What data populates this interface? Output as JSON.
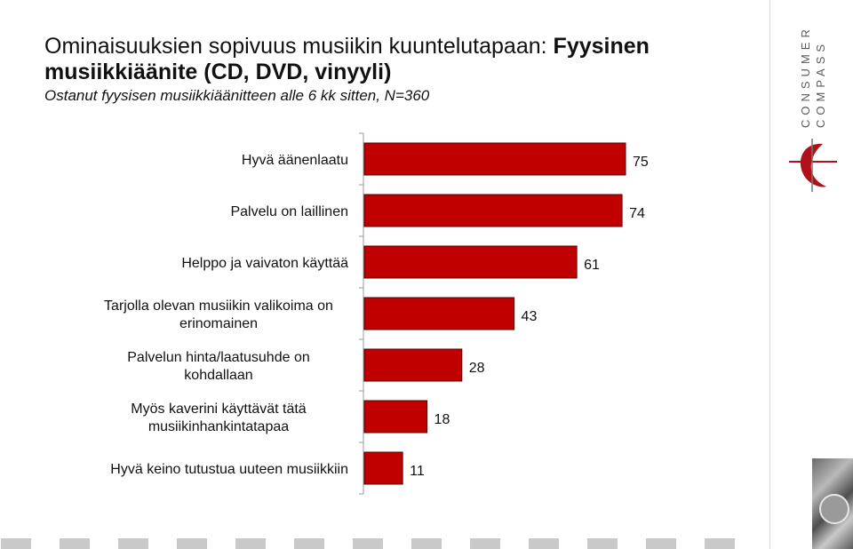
{
  "title": {
    "normal": "Ominaisuuksien sopivuus musiikin kuuntelutapaan: ",
    "bold": "Fyysinen musiikkiäänite (CD, DVD, vinyyli)"
  },
  "subtitle": "Ostanut fyysisen musiikkiäänitteen alle 6 kk sitten, N=360",
  "logo": {
    "line1": "CONSUMER",
    "line2": "COMPASS",
    "color": "#b0101a"
  },
  "colors": {
    "bar": "#c00000",
    "bar_edge": "#5a0000"
  },
  "chart_data": {
    "type": "bar",
    "orientation": "horizontal",
    "categories": [
      [
        "Hyvä äänenlaatu"
      ],
      [
        "Palvelu on laillinen"
      ],
      [
        "Helppo ja vaivaton käyttää"
      ],
      [
        "Tarjolla olevan  musiikin valikoima on",
        "erinomainen"
      ],
      [
        "Palvelun hinta/laatusuhde on",
        "kohdallaan"
      ],
      [
        "Myös kaverini käyttävät tätä",
        "musiikinhankintatapaa"
      ],
      [
        "Hyvä keino tutustua uuteen musiikkiin"
      ]
    ],
    "values": [
      75,
      74,
      61,
      43,
      28,
      18,
      11
    ],
    "xlim": [
      0,
      100
    ],
    "grid": false,
    "legend": "none"
  }
}
